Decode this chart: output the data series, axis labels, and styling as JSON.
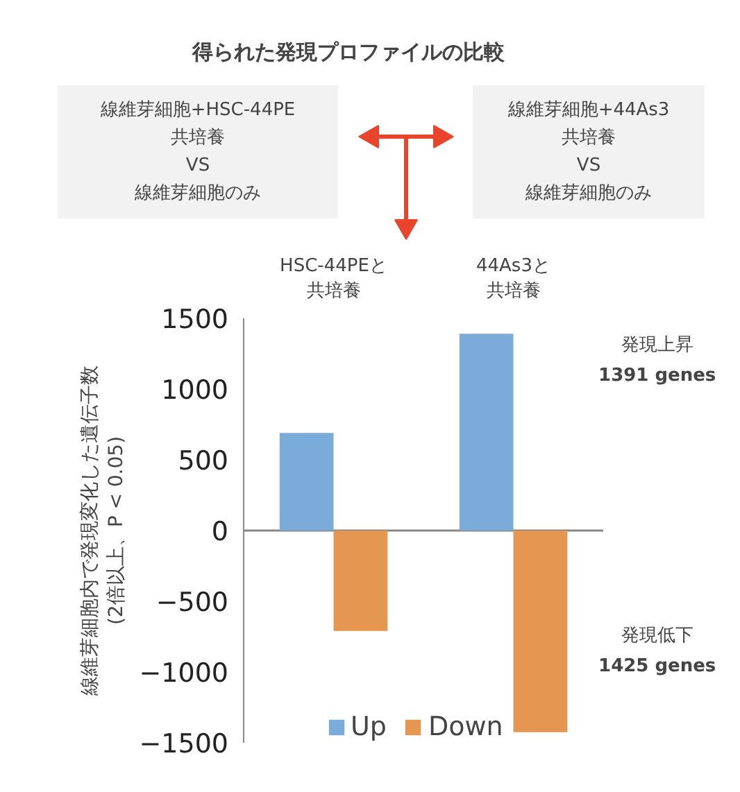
{
  "chart_data": {
    "type": "bar",
    "title": "得られた発現プロファイルの比較",
    "categories": [
      "HSC-44PEと共培養",
      "44As3と共培養"
    ],
    "series": [
      {
        "name": "Up",
        "color": "#7babd9",
        "values": [
          690,
          1391
        ]
      },
      {
        "name": "Down",
        "color": "#e59752",
        "values": [
          -710,
          -1425
        ]
      }
    ],
    "ylabel": "線維芽細胞内で発現変化した遺伝子数\n(2倍以上、P < 0.05)",
    "ylim": [
      -1500,
      1500
    ],
    "yticks": [
      -1500,
      -1000,
      -500,
      0,
      500,
      1000,
      1500
    ],
    "legend": "bottom",
    "annotations": [
      "線維芽細胞+HSC-44PE\n共培養\nVS\n線維芽細胞のみ",
      "線維芽細胞+44As3\n共培養\nVS\n線維芽細胞のみ",
      "発現上昇",
      "1391 genes",
      "発現低下",
      "1425 genes"
    ]
  }
}
